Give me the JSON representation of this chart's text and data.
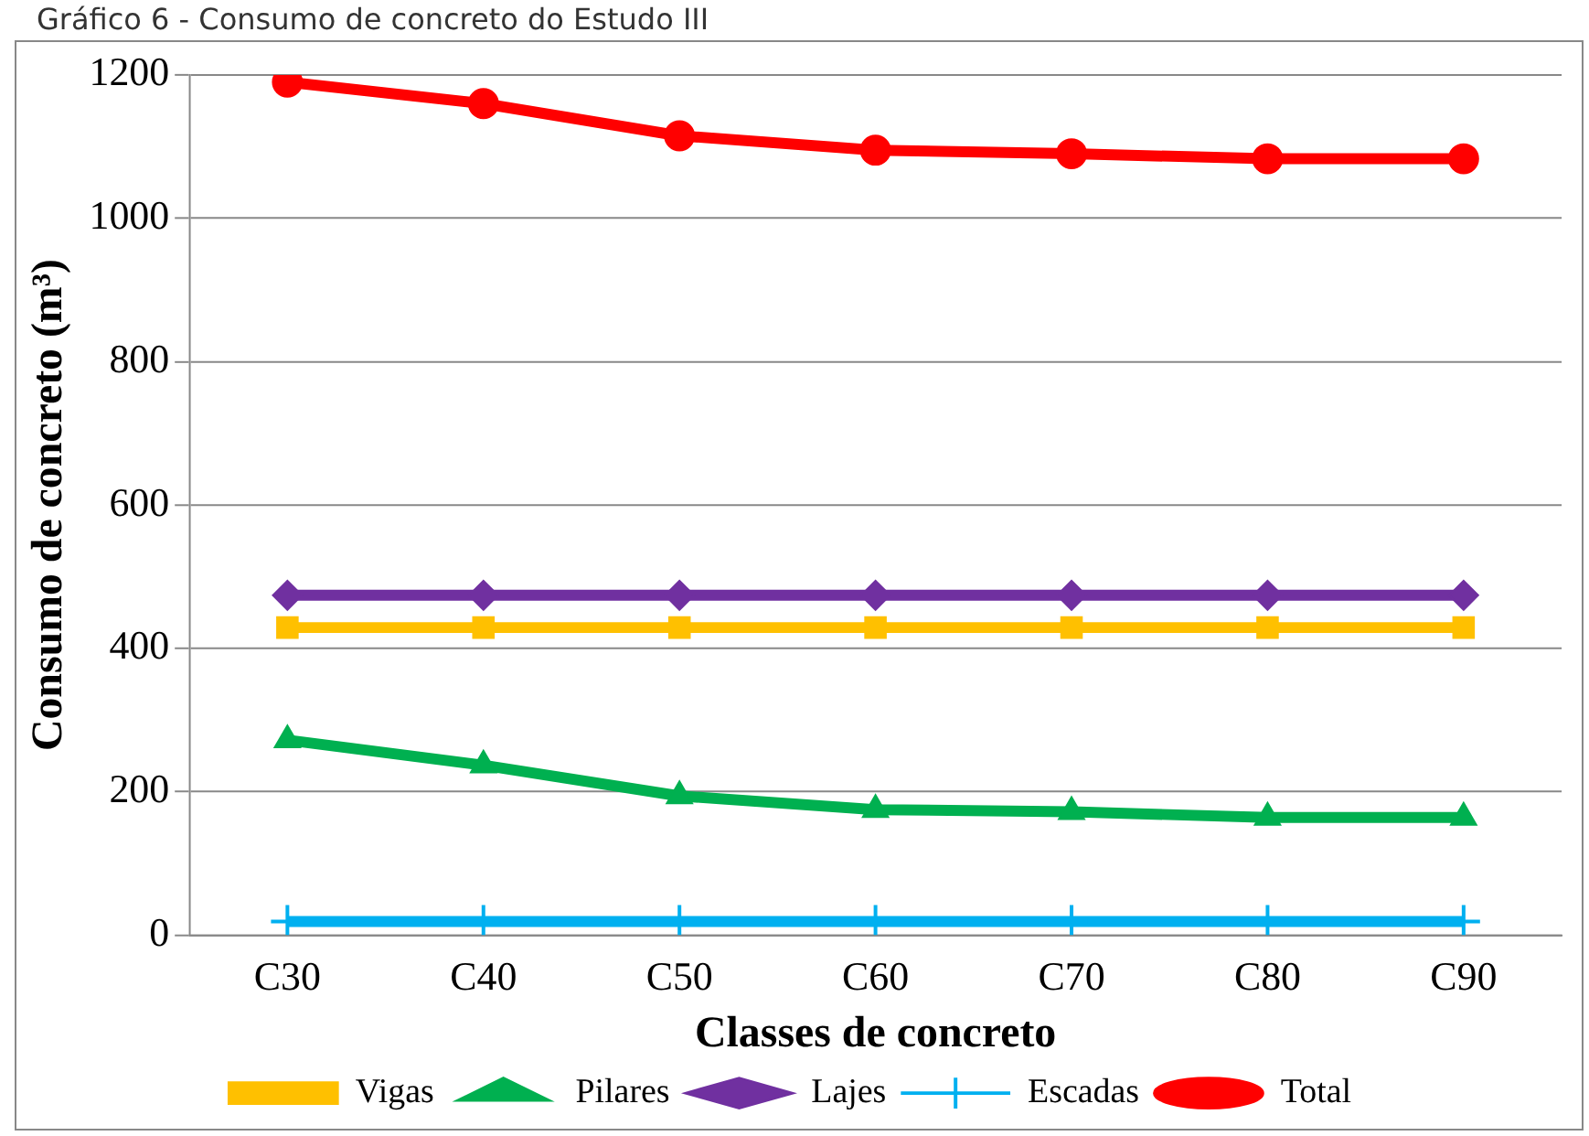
{
  "chart_data": {
    "type": "line",
    "title": "Gráfico 6 - Consumo de concreto do Estudo III",
    "xlabel": "Classes de concreto",
    "ylabel": "Consumo de concreto (m³)",
    "categories": [
      "C30",
      "C40",
      "C50",
      "C60",
      "C70",
      "C80",
      "C90"
    ],
    "series": [
      {
        "name": "Vigas",
        "color": "#ffc000",
        "marker": "square",
        "values": [
          429,
          429,
          429,
          429,
          429,
          429,
          429
        ]
      },
      {
        "name": "Pilares",
        "color": "#00b050",
        "marker": "triangle",
        "values": [
          272,
          237,
          194,
          175,
          172,
          164,
          164
        ]
      },
      {
        "name": "Lajes",
        "color": "#7030a0",
        "marker": "diamond",
        "values": [
          474,
          474,
          474,
          474,
          474,
          474,
          474
        ]
      },
      {
        "name": "Escadas",
        "color": "#00b0f0",
        "marker": "cross",
        "values": [
          19,
          19,
          19,
          19,
          19,
          19,
          19
        ]
      },
      {
        "name": "Total",
        "color": "#ff0000",
        "marker": "circle",
        "values": [
          1190,
          1160,
          1115,
          1095,
          1090,
          1083,
          1083
        ]
      }
    ],
    "ylim": [
      0,
      1200
    ],
    "yticks": [
      0,
      200,
      400,
      600,
      800,
      1000,
      1200
    ],
    "grid": "y",
    "legend": "bottom",
    "line_style": "solid"
  }
}
